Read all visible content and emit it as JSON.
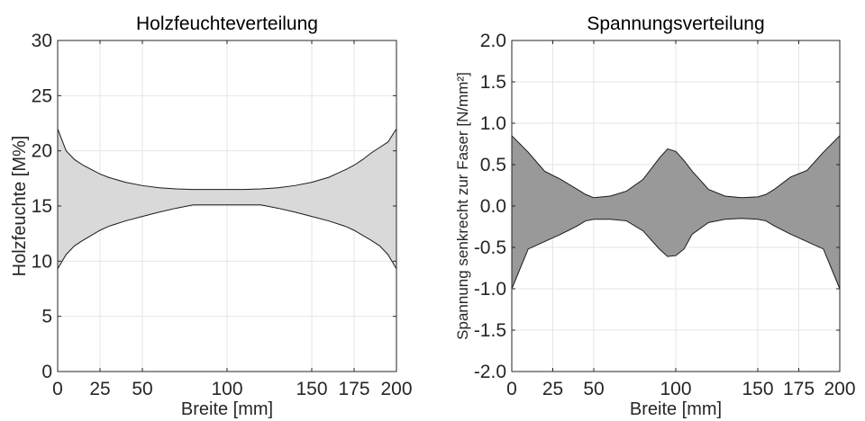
{
  "chart_data": [
    {
      "type": "area",
      "title": "Holzfeuchteverteilung",
      "xlabel": "Breite [mm]",
      "ylabel": "Holzfeuchte [M%]",
      "xlim": [
        0,
        200
      ],
      "ylim": [
        0,
        30
      ],
      "xticks": [
        0,
        25,
        50,
        100,
        150,
        175,
        200
      ],
      "yticks": [
        0,
        5,
        10,
        15,
        20,
        25,
        30
      ],
      "grid": true,
      "fill_color": "#d9d9d9",
      "x": [
        0,
        5,
        10,
        15,
        20,
        25,
        30,
        40,
        50,
        60,
        70,
        80,
        90,
        100,
        110,
        120,
        130,
        140,
        150,
        160,
        170,
        175,
        180,
        185,
        190,
        195,
        200
      ],
      "upper": [
        22.0,
        20.0,
        19.2,
        18.7,
        18.3,
        17.9,
        17.6,
        17.15,
        16.85,
        16.65,
        16.55,
        16.5,
        16.5,
        16.5,
        16.5,
        16.55,
        16.65,
        16.85,
        17.15,
        17.6,
        18.3,
        18.7,
        19.2,
        19.8,
        20.3,
        20.8,
        22.0
      ],
      "lower": [
        9.3,
        10.6,
        11.4,
        11.9,
        12.35,
        12.8,
        13.15,
        13.65,
        14.05,
        14.45,
        14.8,
        15.1,
        15.1,
        15.1,
        15.1,
        15.1,
        14.8,
        14.45,
        14.05,
        13.65,
        13.15,
        12.8,
        12.35,
        11.9,
        11.4,
        10.6,
        9.3
      ]
    },
    {
      "type": "area",
      "title": "Spannungsverteilung",
      "xlabel": "Breite [mm]",
      "ylabel": "Spannung senkrecht zur Faser [N/mm²]",
      "xlim": [
        0,
        200
      ],
      "ylim": [
        -2.0,
        2.0
      ],
      "xticks": [
        0,
        25,
        50,
        100,
        150,
        175,
        200
      ],
      "yticks": [
        -2.0,
        -1.5,
        -1.0,
        -0.5,
        0.0,
        0.5,
        1.0,
        1.5,
        2.0
      ],
      "ytick_labels": [
        "-2.0",
        "-1.5",
        "-1.0",
        "-0.5",
        "0.0",
        "0.5",
        "1.0",
        "1.5",
        "2.0"
      ],
      "grid": true,
      "fill_color": "#999999",
      "x": [
        0,
        10,
        20,
        30,
        40,
        45,
        50,
        60,
        70,
        80,
        90,
        95,
        100,
        105,
        110,
        120,
        130,
        140,
        150,
        155,
        160,
        170,
        180,
        190,
        200
      ],
      "upper": [
        0.85,
        0.65,
        0.42,
        0.32,
        0.2,
        0.14,
        0.1,
        0.12,
        0.18,
        0.32,
        0.58,
        0.69,
        0.66,
        0.55,
        0.42,
        0.2,
        0.12,
        0.1,
        0.11,
        0.14,
        0.2,
        0.35,
        0.43,
        0.65,
        0.85
      ],
      "lower": [
        -1.0,
        -0.52,
        -0.43,
        -0.34,
        -0.24,
        -0.18,
        -0.16,
        -0.16,
        -0.18,
        -0.3,
        -0.52,
        -0.61,
        -0.6,
        -0.52,
        -0.34,
        -0.2,
        -0.16,
        -0.15,
        -0.16,
        -0.18,
        -0.24,
        -0.34,
        -0.43,
        -0.52,
        -1.0
      ]
    }
  ]
}
